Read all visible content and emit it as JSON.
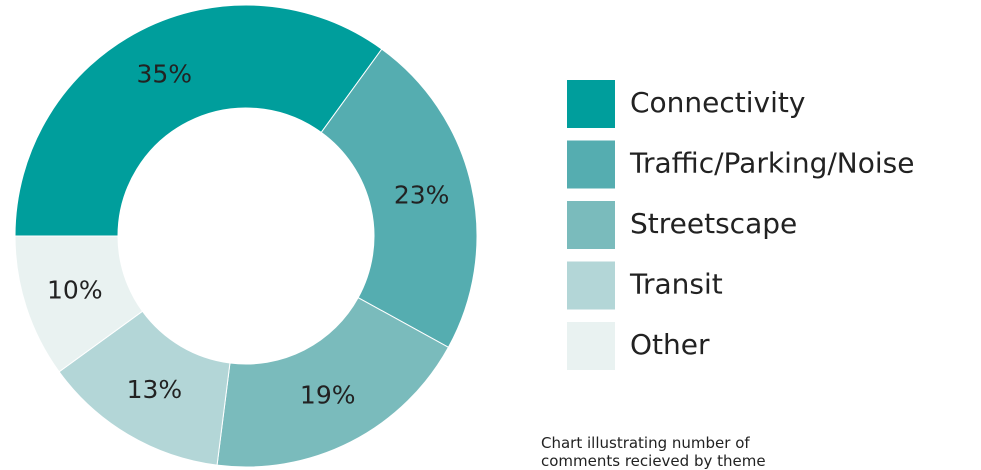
{
  "chart_data": {
    "type": "donut",
    "categories": [
      "Connectivity",
      "Traffic/Parking/Noise",
      "Streetscape",
      "Transit",
      "Other"
    ],
    "values": [
      35,
      23,
      19,
      13,
      10
    ],
    "value_labels": [
      "35%",
      "23%",
      "19%",
      "13%",
      "10%"
    ],
    "colors": [
      "#009e9c",
      "#55adb0",
      "#7abbbc",
      "#b3d6d7",
      "#e9f2f1"
    ],
    "legend": "right",
    "caption": "Chart illustrating number of comments recieved by theme"
  }
}
